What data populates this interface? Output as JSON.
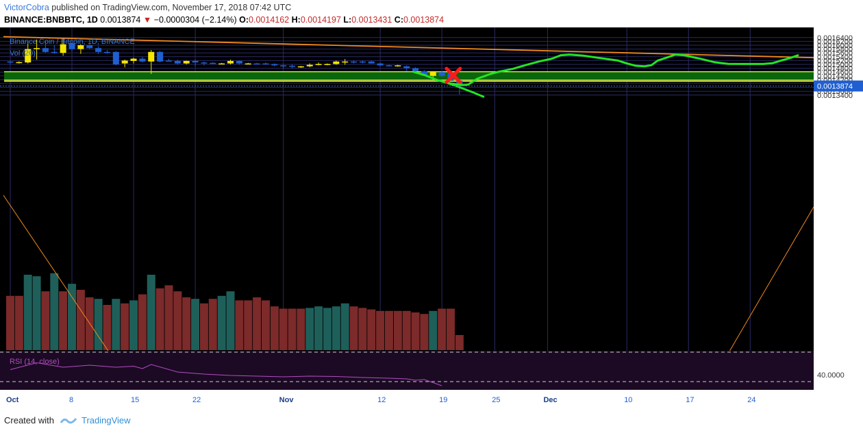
{
  "header": {
    "author": "VictorCobra",
    "published_text": "published on TradingView.com, November 17, 2018 07:42 UTC",
    "symbol": "BINANCE:BNBBTC, 1D",
    "last": "0.0013874",
    "change": "−0.0000304 (−2.14%)",
    "o_label": "O:",
    "o_value": "0.0014162",
    "h_label": "H:",
    "h_value": "0.0014197",
    "l_label": "L:",
    "l_value": "0.0013431",
    "c_label": "C:",
    "c_value": "0.0013874"
  },
  "footer": {
    "created_with": "Created with",
    "brand": "TradingView"
  },
  "colors": {
    "background": "#000000",
    "bull": "#f5e600",
    "bear": "#1f5fd1",
    "vol_bull": "#1e5f5a",
    "vol_bear": "#7c2a2a",
    "zone": "#0b6b0b",
    "projection": "#22e622",
    "trendline": "#f28a1e",
    "rsi": "#b44cc4",
    "marker": "#ff1a1a"
  },
  "chart_data": {
    "type": "candlestick",
    "title": "Binance Coin / Bitcoin, 1D, BINANCE",
    "volume_label": "Vol (20)",
    "rsi_label": "RSI (14, close)",
    "rsi_level_label": "40.0000",
    "price_label_current": "0.0013874",
    "y_ticks": [
      "0.0016400",
      "0.0016200",
      "0.0016000",
      "0.0015800",
      "0.0015600",
      "0.0015400",
      "0.0015200",
      "0.0015000",
      "0.0014800",
      "0.0014600",
      "0.0014400",
      "0.0014200",
      "0.0014000",
      "0.0013800",
      "0.0013600",
      "0.0013400"
    ],
    "ylim": [
      0.00133,
      0.00165
    ],
    "x_ticks": [
      {
        "label": "Oct",
        "day": 0,
        "bold": true
      },
      {
        "label": "8",
        "day": 7,
        "bold": false
      },
      {
        "label": "15",
        "day": 14,
        "bold": false
      },
      {
        "label": "22",
        "day": 21,
        "bold": false
      },
      {
        "label": "Nov",
        "day": 31,
        "bold": true
      },
      {
        "label": "12",
        "day": 42,
        "bold": false
      },
      {
        "label": "19",
        "day": 49,
        "bold": false
      },
      {
        "label": "25",
        "day": 55,
        "bold": false
      },
      {
        "label": "Dec",
        "day": 61,
        "bold": true
      },
      {
        "label": "10",
        "day": 70,
        "bold": false
      },
      {
        "label": "17",
        "day": 77,
        "bold": false
      },
      {
        "label": "24",
        "day": 84,
        "bold": false
      }
    ],
    "ohlc": [
      [
        0.001515,
        0.001518,
        0.0015,
        0.00151
      ],
      [
        0.00151,
        0.001516,
        0.001505,
        0.001512
      ],
      [
        0.00151,
        0.00162,
        0.001505,
        0.00158
      ],
      [
        0.00158,
        0.00163,
        0.001525,
        0.001585
      ],
      [
        0.001585,
        0.00162,
        0.00156,
        0.001565
      ],
      [
        0.001565,
        0.0016,
        0.001555,
        0.00156
      ],
      [
        0.00156,
        0.001635,
        0.001545,
        0.001605
      ],
      [
        0.00161,
        0.001625,
        0.001565,
        0.00158
      ],
      [
        0.00158,
        0.001605,
        0.001555,
        0.0016
      ],
      [
        0.0016,
        0.001605,
        0.00158,
        0.001585
      ],
      [
        0.001585,
        0.001595,
        0.001555,
        0.001565
      ],
      [
        0.001565,
        0.001575,
        0.001555,
        0.00156
      ],
      [
        0.001565,
        0.00157,
        0.001495,
        0.0015
      ],
      [
        0.001505,
        0.001525,
        0.001485,
        0.00152
      ],
      [
        0.001518,
        0.001535,
        0.001505,
        0.00153
      ],
      [
        0.00153,
        0.00154,
        0.00151,
        0.001515
      ],
      [
        0.001515,
        0.001575,
        0.00145,
        0.001565
      ],
      [
        0.001565,
        0.00157,
        0.00151,
        0.001515
      ],
      [
        0.00152,
        0.00153,
        0.001515,
        0.001518
      ],
      [
        0.001518,
        0.001525,
        0.001498,
        0.001505
      ],
      [
        0.001505,
        0.00152,
        0.0015,
        0.001518
      ],
      [
        0.001518,
        0.001525,
        0.00149,
        0.00151
      ],
      [
        0.00151,
        0.001515,
        0.001495,
        0.001508
      ],
      [
        0.001508,
        0.001512,
        0.001505,
        0.001505
      ],
      [
        0.001505,
        0.001508,
        0.0015,
        0.001505
      ],
      [
        0.001505,
        0.001525,
        0.0015,
        0.001518
      ],
      [
        0.001518,
        0.00152,
        0.001498,
        0.001505
      ],
      [
        0.001505,
        0.001508,
        0.0015,
        0.001505
      ],
      [
        0.001505,
        0.001508,
        0.001502,
        0.001503
      ],
      [
        0.001505,
        0.00151,
        0.0015,
        0.001502
      ],
      [
        0.001502,
        0.001505,
        0.00149,
        0.001495
      ],
      [
        0.001495,
        0.0015,
        0.00148,
        0.001493
      ],
      [
        0.001493,
        0.0015,
        0.00148,
        0.001488
      ],
      [
        0.001488,
        0.001492,
        0.001482,
        0.00149
      ],
      [
        0.00149,
        0.001505,
        0.001485,
        0.001498
      ],
      [
        0.001498,
        0.00151,
        0.001495,
        0.001502
      ],
      [
        0.001502,
        0.001505,
        0.001496,
        0.001502
      ],
      [
        0.001502,
        0.00152,
        0.001498,
        0.001515
      ],
      [
        0.001515,
        0.001528,
        0.001498,
        0.001515
      ],
      [
        0.001515,
        0.00152,
        0.001505,
        0.00151
      ],
      [
        0.001515,
        0.00152,
        0.001505,
        0.00151
      ],
      [
        0.001515,
        0.00152,
        0.001505,
        0.001505
      ],
      [
        0.001505,
        0.001508,
        0.00149,
        0.001495
      ],
      [
        0.001495,
        0.0015,
        0.00149,
        0.001492
      ],
      [
        0.001492,
        0.001498,
        0.001488,
        0.001495
      ],
      [
        0.00149,
        0.001495,
        0.001465,
        0.00148
      ],
      [
        0.00148,
        0.001485,
        0.00145,
        0.001465
      ],
      [
        0.001465,
        0.00147,
        0.00144,
        0.00144
      ],
      [
        0.00144,
        0.001465,
        0.00143,
        0.00146
      ],
      [
        0.00146,
        0.001465,
        0.001435,
        0.00144
      ],
      [
        0.001455,
        0.00146,
        0.001415,
        0.001416
      ],
      [
        0.001416,
        0.00142,
        0.001343,
        0.001387
      ]
    ],
    "volume": [
      {
        "v": 0.72,
        "up": false
      },
      {
        "v": 0.72,
        "up": false
      },
      {
        "v": 1.0,
        "up": true
      },
      {
        "v": 0.98,
        "up": true
      },
      {
        "v": 0.78,
        "up": false
      },
      {
        "v": 1.02,
        "up": true
      },
      {
        "v": 0.78,
        "up": false
      },
      {
        "v": 0.88,
        "up": true
      },
      {
        "v": 0.8,
        "up": false
      },
      {
        "v": 0.7,
        "up": false
      },
      {
        "v": 0.68,
        "up": true
      },
      {
        "v": 0.6,
        "up": false
      },
      {
        "v": 0.68,
        "up": true
      },
      {
        "v": 0.62,
        "up": false
      },
      {
        "v": 0.66,
        "up": true
      },
      {
        "v": 0.74,
        "up": false
      },
      {
        "v": 1.0,
        "up": true
      },
      {
        "v": 0.82,
        "up": false
      },
      {
        "v": 0.86,
        "up": false
      },
      {
        "v": 0.78,
        "up": false
      },
      {
        "v": 0.7,
        "up": false
      },
      {
        "v": 0.68,
        "up": true
      },
      {
        "v": 0.62,
        "up": false
      },
      {
        "v": 0.68,
        "up": false
      },
      {
        "v": 0.72,
        "up": true
      },
      {
        "v": 0.78,
        "up": true
      },
      {
        "v": 0.66,
        "up": false
      },
      {
        "v": 0.66,
        "up": false
      },
      {
        "v": 0.7,
        "up": false
      },
      {
        "v": 0.66,
        "up": false
      },
      {
        "v": 0.58,
        "up": false
      },
      {
        "v": 0.55,
        "up": false
      },
      {
        "v": 0.55,
        "up": false
      },
      {
        "v": 0.55,
        "up": false
      },
      {
        "v": 0.56,
        "up": true
      },
      {
        "v": 0.58,
        "up": true
      },
      {
        "v": 0.56,
        "up": true
      },
      {
        "v": 0.58,
        "up": true
      },
      {
        "v": 0.62,
        "up": true
      },
      {
        "v": 0.58,
        "up": false
      },
      {
        "v": 0.56,
        "up": false
      },
      {
        "v": 0.54,
        "up": false
      },
      {
        "v": 0.52,
        "up": false
      },
      {
        "v": 0.52,
        "up": false
      },
      {
        "v": 0.52,
        "up": false
      },
      {
        "v": 0.52,
        "up": false
      },
      {
        "v": 0.5,
        "up": false
      },
      {
        "v": 0.48,
        "up": false
      },
      {
        "v": 0.52,
        "up": true
      },
      {
        "v": 0.55,
        "up": false
      },
      {
        "v": 0.55,
        "up": false
      },
      {
        "v": 0.2,
        "up": false
      }
    ],
    "zone": [
      0.001412,
      0.001462
    ],
    "zone_line": 0.001418,
    "trendline": [
      {
        "day": 0,
        "price": 0.001648
      },
      {
        "day": 90,
        "price": 0.001535
      }
    ],
    "projection": [
      [
        45.7,
        0.001462
      ],
      [
        47.0,
        0.001445
      ],
      [
        48.5,
        0.001418
      ],
      [
        50.0,
        0.0014
      ],
      [
        51.5,
        0.001392
      ],
      [
        52.0,
        0.001395
      ],
      [
        53.0,
        0.001425
      ],
      [
        54.5,
        0.00145
      ],
      [
        55.5,
        0.001462
      ],
      [
        57.0,
        0.001476
      ],
      [
        58.5,
        0.001496
      ],
      [
        60.0,
        0.001515
      ],
      [
        61.5,
        0.00153
      ],
      [
        62.5,
        0.001548
      ],
      [
        63.5,
        0.001551
      ],
      [
        65.0,
        0.001546
      ],
      [
        67.0,
        0.001533
      ],
      [
        69.0,
        0.00152
      ],
      [
        70.0,
        0.001505
      ],
      [
        71.0,
        0.001493
      ],
      [
        72.0,
        0.00149
      ],
      [
        72.8,
        0.001496
      ],
      [
        73.5,
        0.00152
      ],
      [
        74.5,
        0.001535
      ],
      [
        75.5,
        0.001551
      ],
      [
        76.5,
        0.001548
      ],
      [
        78.5,
        0.001528
      ],
      [
        80.0,
        0.001511
      ],
      [
        81.5,
        0.001503
      ],
      [
        83.5,
        0.001502
      ],
      [
        85.5,
        0.001502
      ],
      [
        86.5,
        0.001506
      ],
      [
        87.5,
        0.00152
      ],
      [
        88.5,
        0.001533
      ],
      [
        89.5,
        0.001549
      ]
    ],
    "projection_down": [
      [
        48.8,
        0.001415
      ],
      [
        50.5,
        0.00139
      ],
      [
        52.5,
        0.001355
      ],
      [
        53.8,
        0.00133
      ]
    ],
    "rsi": [
      [
        0,
        0.55
      ],
      [
        3,
        0.35
      ],
      [
        6,
        0.48
      ],
      [
        9,
        0.42
      ],
      [
        12,
        0.48
      ],
      [
        14,
        0.45
      ],
      [
        15,
        0.52
      ],
      [
        16,
        0.4
      ],
      [
        19,
        0.62
      ],
      [
        22,
        0.68
      ],
      [
        25,
        0.72
      ],
      [
        28,
        0.74
      ],
      [
        31,
        0.76
      ],
      [
        34,
        0.74
      ],
      [
        37,
        0.75
      ],
      [
        40,
        0.78
      ],
      [
        43,
        0.8
      ],
      [
        45,
        0.82
      ],
      [
        46,
        0.86
      ],
      [
        47,
        0.84
      ],
      [
        49,
        1.02
      ]
    ]
  }
}
